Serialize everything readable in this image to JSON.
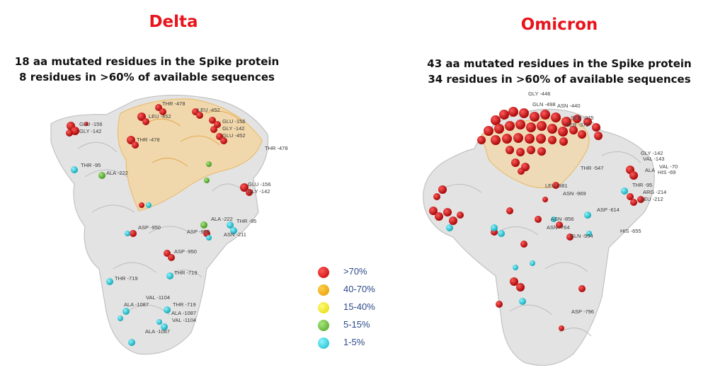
{
  "panels": [
    {
      "title": "Delta",
      "line1": "18 aa mutated residues in the Spike protein",
      "line2": "8 residues in >60% of available sequences",
      "labels": [
        "THR -478",
        "LEU -452",
        "LEU -452",
        "GLU -156",
        "GLY -142",
        "THR -478",
        "GLU -156",
        "GLY -142",
        "GLU -452",
        "THR -478",
        "THR -95",
        "ALA -222",
        "GLU -156",
        "GLY -142",
        "ALA -222",
        "THR -95",
        "ASP -950",
        "ASP -950",
        "ASN -211",
        "ASP -950",
        "THR -719",
        "THR -719",
        "VAL -1104",
        "ALA -1087",
        "THR -719",
        "ALA -1087",
        "VAL -1104",
        "ALA -1087"
      ]
    },
    {
      "title": "Omicron",
      "line1": "43 aa mutated residues in the Spike protein",
      "line2": "34 residues in >60% of available sequences",
      "labels": [
        "GLY -446",
        "GLN -498",
        "ASN -440",
        "SER -375",
        "SER -373",
        "GLY -142",
        "VAL -143",
        "VAL -70",
        "HIS -69",
        "ALA",
        "THR -547",
        "THR -95",
        "LEU -981",
        "ASN -969",
        "ARG -214",
        "LEU -212",
        "ASP -614",
        "ASN -856",
        "ASN -764",
        "GLN -954",
        "HIS -655",
        "ASP -796"
      ]
    }
  ],
  "legend": [
    {
      "label": ">70%",
      "color": "#dd1111"
    },
    {
      "label": "40-70%",
      "color": "#f5a800"
    },
    {
      "label": "15-40%",
      "color": "#f4e800"
    },
    {
      "label": "5-15%",
      "color": "#6bbf3a"
    },
    {
      "label": "1-5%",
      "color": "#19d0de"
    }
  ]
}
